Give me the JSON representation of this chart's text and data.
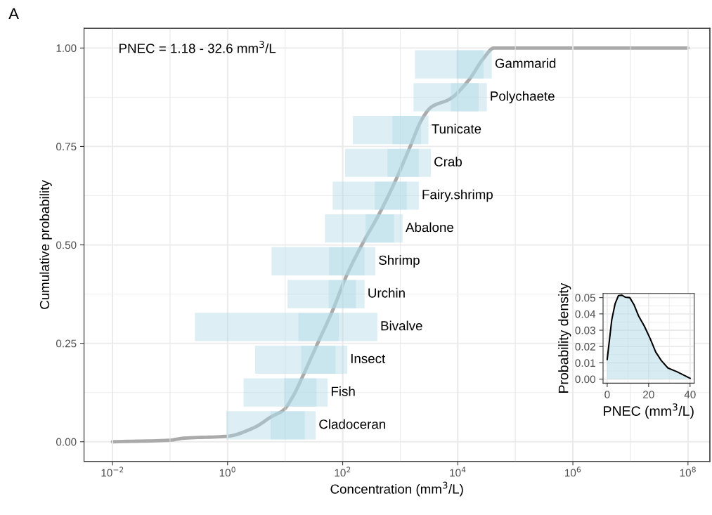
{
  "chart_data": [
    {
      "type": "line",
      "xlabel": "Concentration (mm$^{3}$/L)",
      "ylabel": "Cumulative probability",
      "log": "x",
      "xlim": [
        0.0032,
        240000000
      ],
      "xticks": [
        0.01,
        1,
        100,
        10000,
        1000000,
        100000000
      ],
      "ylim": [
        -0.05,
        1.05
      ],
      "yticks": [
        {
          "value": 0,
          "label": "0.00"
        },
        {
          "value": 0.25,
          "label": "0.25"
        },
        {
          "value": 0.5,
          "label": "0.50"
        },
        {
          "value": 0.75,
          "label": "0.75"
        },
        {
          "value": 1,
          "label": "1.00"
        }
      ],
      "grid": true,
      "tick_labels": "y",
      "series": [
        {
          "color": "#aaaaaa",
          "x": [
            0.01,
            0.1,
            0.17,
            1,
            2.8,
            6,
            9.3,
            14,
            20,
            37,
            68,
            115,
            208,
            450,
            850,
            1480,
            2400,
            3460,
            7400,
            15800,
            27700,
            42600,
            100000000
          ],
          "values": [
            0,
            0.004,
            0.009,
            0.014,
            0.035,
            0.065,
            0.08,
            0.118,
            0.165,
            0.251,
            0.336,
            0.42,
            0.496,
            0.584,
            0.667,
            0.749,
            0.82,
            0.85,
            0.871,
            0.92,
            0.973,
            1.0,
            1.0
          ]
        }
      ],
      "annotations": [
        "PNEC = 1.18 - 32.6 mm$^{3}$/L",
        "A"
      ]
    },
    {
      "type": "bar",
      "orientation": "horizontal",
      "log": "x",
      "grid": "x",
      "xlim": [
        0.0032,
        240000000
      ],
      "xticks": [
        {
          "value": 0.01,
          "label": "10$^{−2}$"
        },
        {
          "value": 1,
          "label": "10$^{0}$"
        },
        {
          "value": 100,
          "label": "10$^{2}$"
        },
        {
          "value": 10000,
          "label": "10$^{4}$"
        },
        {
          "value": 1000000,
          "label": "10$^{6}$"
        },
        {
          "value": 100000000,
          "label": "10$^{8}$"
        }
      ],
      "categories": [
        "Gammarid",
        "Polychaete",
        "Tunicate",
        "Crab",
        "Fairy.shrimp",
        "Abalone",
        "Shrimp",
        "Urchin",
        "Bivalve",
        "Insect",
        "Fish",
        "Cladoceran"
      ],
      "series": [
        {
          "color": "#add8e6",
          "base": [
            1800,
            1700,
            150,
            110,
            67,
            49,
            5.8,
            11,
            0.27,
            3,
            1.9,
            0.95
          ],
          "values": [
            37200,
            30300,
            2950,
            3290,
            2033,
            1051,
            364,
            229,
            400,
            117,
            53,
            33
          ]
        },
        {
          "color": "#add8e6",
          "base": [
            9500,
            7600,
            730,
            600,
            360,
            250,
            58,
            57,
            17,
            19,
            9.6,
            5.6
          ],
          "values": [
            18500,
            15400,
            1570,
            1500,
            940,
            530,
            182,
            113,
            69,
            56,
            25.4,
            16.4
          ]
        }
      ]
    },
    {
      "type": "area",
      "xlabel": "PNEC (mm$^{3}$/L)",
      "ylabel": "Probability density",
      "xlim": [
        -2,
        42
      ],
      "xticks": [
        0,
        20,
        40
      ],
      "ylim": [
        -0.0025,
        0.0525
      ],
      "yticks": [
        {
          "value": 0,
          "label": "0.00"
        },
        {
          "value": 0.01,
          "label": "0.01"
        },
        {
          "value": 0.02,
          "label": "0.02"
        },
        {
          "value": 0.03,
          "label": "0.03"
        },
        {
          "value": 0.04,
          "label": "0.04"
        },
        {
          "value": 0.05,
          "label": "0.05"
        }
      ],
      "grid": true,
      "series": [
        {
          "color": "#add8e6",
          "x": [
            0,
            2.2,
            3.8,
            5.4,
            7.1,
            8.7,
            10.9,
            13,
            15.2,
            17.9,
            20.7,
            23.4,
            26.1,
            29.3,
            33.7,
            40
          ],
          "values": [
            0.0121,
            0.0364,
            0.0462,
            0.0512,
            0.0515,
            0.0503,
            0.05,
            0.0455,
            0.0386,
            0.0326,
            0.025,
            0.0167,
            0.0114,
            0.0068,
            0.0045,
            0.0005
          ]
        }
      ]
    }
  ]
}
